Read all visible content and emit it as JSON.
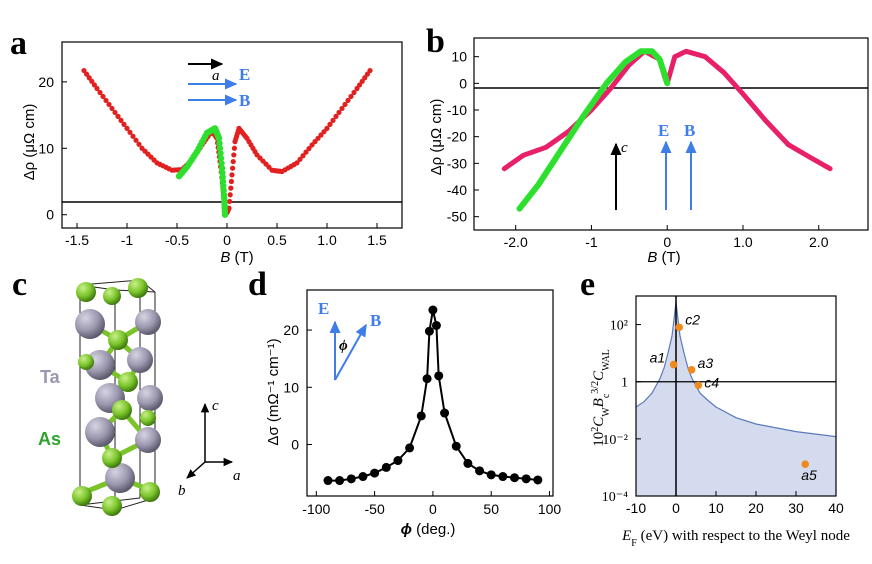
{
  "panels": {
    "a": {
      "label": "a",
      "legend": {
        "a_label": "a",
        "E_label": "E",
        "B_label": "B"
      },
      "xlabel_var": "B",
      "xlabel_unit": " (T)",
      "ylabel": "Δρ (μΩ cm)",
      "xticks": [
        "-1.5",
        "-1",
        "-0.5",
        "0",
        "0.5",
        "1.0",
        "1.5"
      ],
      "yticks": [
        "0",
        "10",
        "20"
      ]
    },
    "b": {
      "label": "b",
      "legend": {
        "c_label": "c",
        "E_label": "E",
        "B_label": "B"
      },
      "xlabel_var": "B",
      "xlabel_unit": " (T)",
      "ylabel": "Δρ (μΩ cm)",
      "xticks": [
        "-2.0",
        "-1",
        "0",
        "1.0",
        "2.0"
      ],
      "yticks": [
        "10",
        "0",
        "-10",
        "-20",
        "-30",
        "-40",
        "-50"
      ]
    },
    "c": {
      "label": "c",
      "atoms": {
        "ta": "Ta",
        "as": "As"
      },
      "axes": {
        "a": "a",
        "b": "b",
        "c": "c"
      },
      "colors": {
        "ta": "#9a97ae",
        "as": "#7ac42a"
      }
    },
    "d": {
      "label": "d",
      "inset": {
        "E_label": "E",
        "B_label": "B",
        "phi_label": "ϕ"
      },
      "xlabel_var": "ϕ",
      "xlabel_unit": " (deg.)",
      "ylabel": "Δσ (mΩ⁻¹ cm⁻¹)",
      "xticks": [
        "-100",
        "-50",
        "0",
        "50",
        "100"
      ],
      "yticks": [
        "0",
        "10",
        "20"
      ]
    },
    "e": {
      "label": "e",
      "xlabel": "E",
      "xlabel_sub": "F",
      "xlabel_rest": " (eV) with respect to the Weyl node",
      "ylabel": "10²C_W B_c^{3/2} C_WAL",
      "xticks": [
        "-10",
        "0",
        "10",
        "20",
        "30",
        "40"
      ],
      "yticks": [
        "10²",
        "1",
        "10⁻²",
        "10⁻⁴"
      ],
      "point_labels": [
        "c2",
        "a1",
        "a3",
        "c4",
        "a5"
      ]
    }
  },
  "chart_data": [
    {
      "panel": "a",
      "type": "scatter",
      "xlabel": "B (T)",
      "ylabel": "Δρ (μΩ cm)",
      "xlim": [
        -1.65,
        1.75
      ],
      "ylim": [
        -2,
        26
      ],
      "series": [
        {
          "name": "B ∥ a (red)",
          "color": "#e22020",
          "x": [
            -1.43,
            -1.3,
            -1.15,
            -1.0,
            -0.85,
            -0.7,
            -0.55,
            -0.45,
            -0.35,
            -0.25,
            -0.15,
            -0.1,
            -0.07,
            -0.04,
            -0.02,
            0.0,
            0.02,
            0.05,
            0.08,
            0.12,
            0.2,
            0.3,
            0.45,
            0.55,
            0.7,
            0.85,
            1.0,
            1.15,
            1.3,
            1.43
          ],
          "y": [
            21.7,
            19.0,
            16.0,
            13.0,
            10.0,
            7.8,
            6.7,
            6.8,
            8.2,
            10.5,
            12.6,
            11.5,
            8.0,
            4.0,
            1.0,
            0.3,
            1.0,
            6.0,
            11.0,
            13.0,
            11.5,
            9.0,
            6.7,
            6.5,
            7.8,
            10.5,
            13.0,
            16.0,
            19.0,
            21.7
          ]
        },
        {
          "name": "E ∥ B ∥ a (green)",
          "color": "#2ee02e",
          "x": [
            -0.48,
            -0.4,
            -0.3,
            -0.2,
            -0.12,
            -0.08,
            -0.05,
            -0.03,
            -0.02
          ],
          "y": [
            5.8,
            7.2,
            9.5,
            12.3,
            13.0,
            11.5,
            7.0,
            3.0,
            0.0
          ]
        }
      ]
    },
    {
      "panel": "b",
      "type": "line",
      "xlabel": "B (T)",
      "ylabel": "Δρ (μΩ cm)",
      "xlim": [
        -2.55,
        2.65
      ],
      "ylim": [
        -55,
        17
      ],
      "series": [
        {
          "name": "B ∥ c (pink)",
          "color": "#e8206a",
          "x": [
            -2.15,
            -1.9,
            -1.6,
            -1.3,
            -1.0,
            -0.75,
            -0.5,
            -0.3,
            -0.1,
            -0.03,
            0.0,
            0.03,
            0.1,
            0.25,
            0.5,
            0.75,
            1.0,
            1.3,
            1.6,
            1.9,
            2.15
          ],
          "y": [
            -32,
            -27,
            -24,
            -18,
            -10,
            -2,
            7,
            12,
            9,
            2,
            0,
            3,
            10,
            12,
            10,
            4,
            -4,
            -14,
            -23,
            -28,
            -32
          ]
        },
        {
          "name": "E ∥ B ∥ c (green)",
          "color": "#2ee02e",
          "x": [
            -1.95,
            -1.7,
            -1.4,
            -1.1,
            -0.8,
            -0.55,
            -0.35,
            -0.2,
            -0.1,
            -0.03,
            0.0
          ],
          "y": [
            -47,
            -38,
            -25,
            -12,
            0,
            8,
            12,
            12,
            9,
            3,
            0
          ]
        }
      ]
    },
    {
      "panel": "d",
      "type": "line",
      "xlabel": "ϕ (deg.)",
      "ylabel": "Δσ (mΩ⁻¹ cm⁻¹)",
      "xlim": [
        -108,
        103
      ],
      "ylim": [
        -9,
        27
      ],
      "series": [
        {
          "name": "Δσ vs ϕ",
          "color": "#000000",
          "x": [
            -90,
            -80,
            -70,
            -60,
            -50,
            -40,
            -30,
            -20,
            -10,
            -5,
            -3,
            0,
            3,
            5,
            10,
            20,
            30,
            40,
            50,
            60,
            70,
            80,
            90
          ],
          "y": [
            -6.3,
            -6.3,
            -6.0,
            -5.6,
            -5.0,
            -4.0,
            -2.8,
            -0.6,
            5.0,
            11.5,
            19.8,
            23.5,
            20.8,
            12.0,
            5.5,
            -0.3,
            -3.3,
            -4.6,
            -5.3,
            -5.6,
            -5.8,
            -6.0,
            -6.2
          ]
        }
      ]
    },
    {
      "panel": "e",
      "type": "scatter",
      "xlabel": "E_F (eV) with respect to the Weyl node",
      "ylabel": "10²C_W B_c^{3/2} C_WAL",
      "xscale": "linear",
      "yscale": "log",
      "xlim": [
        -10,
        40
      ],
      "ylim": [
        0.0001,
        1000
      ],
      "boundary_curve": {
        "x": [
          -10,
          -8,
          -6,
          -4,
          -3,
          -2,
          -1,
          -0.5,
          0,
          0.5,
          1,
          2,
          3,
          4,
          6,
          8,
          10,
          15,
          20,
          30,
          40
        ],
        "y": [
          0.13,
          0.2,
          0.4,
          1.3,
          3,
          10,
          40,
          150,
          600,
          150,
          40,
          10,
          3,
          1.3,
          0.4,
          0.22,
          0.13,
          0.055,
          0.033,
          0.018,
          0.012
        ]
      },
      "points": [
        {
          "label": "c2",
          "x": 0.8,
          "y": 80
        },
        {
          "label": "a1",
          "x": -0.6,
          "y": 4
        },
        {
          "label": "a3",
          "x": 3.9,
          "y": 2.6
        },
        {
          "label": "c4",
          "x": 5.6,
          "y": 0.75
        },
        {
          "label": "a5",
          "x": 32.3,
          "y": 0.0013
        }
      ],
      "hline": 1,
      "vline": 0
    }
  ]
}
